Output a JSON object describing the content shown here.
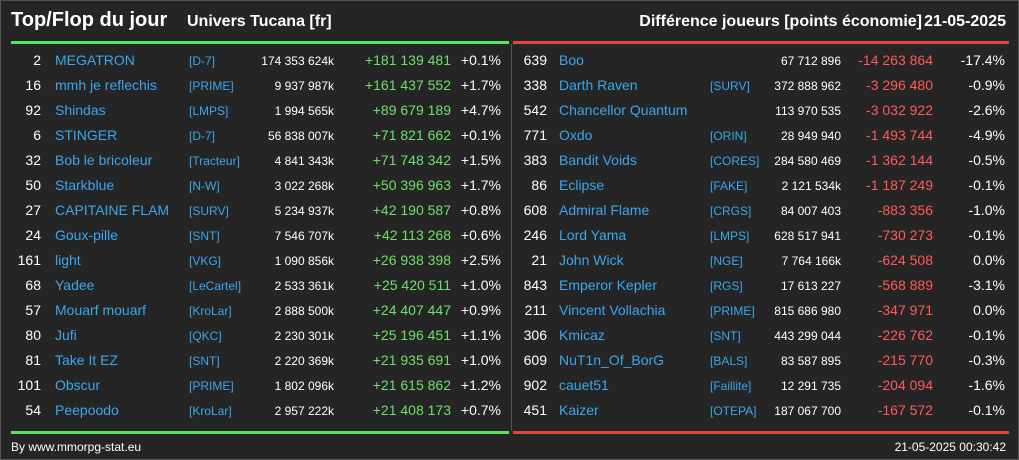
{
  "header": {
    "title": "Top/Flop du jour",
    "universe": "Univers Tucana [fr]",
    "metric": "Différence joueurs [points économie]",
    "date": "21-05-2025"
  },
  "colors": {
    "top_bar": "#5be35a",
    "flop_bar": "#e0463c",
    "up": "#6ee06a",
    "down": "#ff5a5a",
    "link": "#3aa7ee"
  },
  "top": [
    {
      "rank": "2",
      "name": "MEGATRON",
      "tag": "[D-7]",
      "points": "174 353 624k",
      "diff": "+181 139 481",
      "pct": "+0.1%"
    },
    {
      "rank": "16",
      "name": "mmh je reflechis",
      "tag": "[PRIME]",
      "points": "9 937 987k",
      "diff": "+161 437 552",
      "pct": "+1.7%"
    },
    {
      "rank": "92",
      "name": "Shindas",
      "tag": "[LMPS]",
      "points": "1 994 565k",
      "diff": "+89 679 189",
      "pct": "+4.7%"
    },
    {
      "rank": "6",
      "name": "STINGER",
      "tag": "[D-7]",
      "points": "56 838 007k",
      "diff": "+71 821 662",
      "pct": "+0.1%"
    },
    {
      "rank": "32",
      "name": "Bob le bricoleur",
      "tag": "[Tracteur]",
      "points": "4 841 343k",
      "diff": "+71 748 342",
      "pct": "+1.5%"
    },
    {
      "rank": "50",
      "name": "Starkblue",
      "tag": "[N-W]",
      "points": "3 022 268k",
      "diff": "+50 396 963",
      "pct": "+1.7%"
    },
    {
      "rank": "27",
      "name": "CAPITAINE FLAM",
      "tag": "[SURV]",
      "points": "5 234 937k",
      "diff": "+42 190 587",
      "pct": "+0.8%"
    },
    {
      "rank": "24",
      "name": "Goux-pille",
      "tag": "[SNT]",
      "points": "7 546 707k",
      "diff": "+42 113 268",
      "pct": "+0.6%"
    },
    {
      "rank": "161",
      "name": "light",
      "tag": "[VKG]",
      "points": "1 090 856k",
      "diff": "+26 938 398",
      "pct": "+2.5%"
    },
    {
      "rank": "68",
      "name": "Yadee",
      "tag": "[LeCartel]",
      "points": "2 533 361k",
      "diff": "+25 420 511",
      "pct": "+1.0%"
    },
    {
      "rank": "57",
      "name": "Mouarf mouarf",
      "tag": "[KroLar]",
      "points": "2 888 500k",
      "diff": "+24 407 447",
      "pct": "+0.9%"
    },
    {
      "rank": "80",
      "name": "Jufi",
      "tag": "[QKC]",
      "points": "2 230 301k",
      "diff": "+25 196 451",
      "pct": "+1.1%"
    },
    {
      "rank": "81",
      "name": "Take It EZ",
      "tag": "[SNT]",
      "points": "2 220 369k",
      "diff": "+21 935 691",
      "pct": "+1.0%"
    },
    {
      "rank": "101",
      "name": "Obscur",
      "tag": "[PRIME]",
      "points": "1 802 096k",
      "diff": "+21 615 862",
      "pct": "+1.2%"
    },
    {
      "rank": "54",
      "name": "Peepoodo",
      "tag": "[KroLar]",
      "points": "2 957 222k",
      "diff": "+21 408 173",
      "pct": "+0.7%"
    }
  ],
  "flop": [
    {
      "rank": "639",
      "name": "Boo",
      "tag": "",
      "points": "67 712 896",
      "diff": "-14 263 864",
      "pct": "-17.4%"
    },
    {
      "rank": "338",
      "name": "Darth Raven",
      "tag": "[SURV]",
      "points": "372 888 962",
      "diff": "-3 296 480",
      "pct": "-0.9%"
    },
    {
      "rank": "542",
      "name": "Chancellor Quantum",
      "tag": "",
      "points": "113 970 535",
      "diff": "-3 032 922",
      "pct": "-2.6%"
    },
    {
      "rank": "771",
      "name": "Oxdo",
      "tag": "[ORIN]",
      "points": "28 949 940",
      "diff": "-1 493 744",
      "pct": "-4.9%"
    },
    {
      "rank": "383",
      "name": "Bandit Voids",
      "tag": "[CORES]",
      "points": "284 580 469",
      "diff": "-1 362 144",
      "pct": "-0.5%"
    },
    {
      "rank": "86",
      "name": "Eclipse",
      "tag": "[FAKE]",
      "points": "2 121 534k",
      "diff": "-1 187 249",
      "pct": "-0.1%"
    },
    {
      "rank": "608",
      "name": "Admiral Flame",
      "tag": "[CRGS]",
      "points": "84 007 403",
      "diff": "-883 356",
      "pct": "-1.0%"
    },
    {
      "rank": "246",
      "name": "Lord Yama",
      "tag": "[LMPS]",
      "points": "628 517 941",
      "diff": "-730 273",
      "pct": "-0.1%"
    },
    {
      "rank": "21",
      "name": "John Wick",
      "tag": "[NGE]",
      "points": "7 764 166k",
      "diff": "-624 508",
      "pct": "0.0%"
    },
    {
      "rank": "843",
      "name": "Emperor Kepler",
      "tag": "[RGS]",
      "points": "17 613 227",
      "diff": "-568 889",
      "pct": "-3.1%"
    },
    {
      "rank": "211",
      "name": "Vincent Vollachia",
      "tag": "[PRIME]",
      "points": "815 686 980",
      "diff": "-347 971",
      "pct": "0.0%"
    },
    {
      "rank": "306",
      "name": "Kmicaz",
      "tag": "[SNT]",
      "points": "443 299 044",
      "diff": "-226 762",
      "pct": "-0.1%"
    },
    {
      "rank": "609",
      "name": "NuT1n_Of_BorG",
      "tag": "[BALS]",
      "points": "83 587 895",
      "diff": "-215 770",
      "pct": "-0.3%"
    },
    {
      "rank": "902",
      "name": "cauet51",
      "tag": "[Faillite]",
      "points": "12 291 735",
      "diff": "-204 094",
      "pct": "-1.6%"
    },
    {
      "rank": "451",
      "name": "Kaizer",
      "tag": "[OTEPA]",
      "points": "187 067 700",
      "diff": "-167 572",
      "pct": "-0.1%"
    }
  ],
  "footer": {
    "source": "By www.mmorpg-stat.eu",
    "timestamp": "21-05-2025 00:30:42"
  }
}
